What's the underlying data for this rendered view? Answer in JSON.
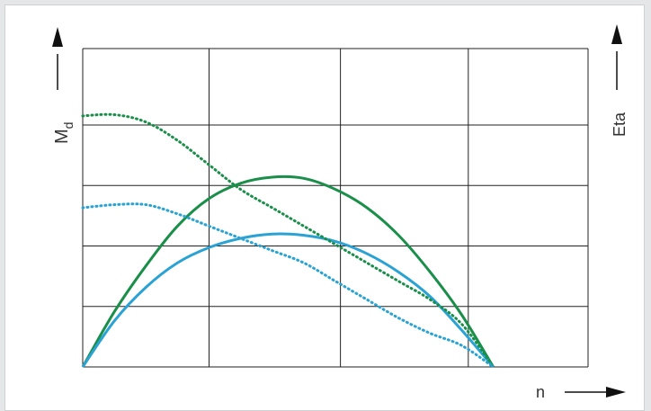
{
  "chart_data": {
    "type": "line",
    "ylabel_left": "M",
    "ylabel_left_subscript": "d",
    "ylabel_right": "Eta",
    "xlabel": "n",
    "xlim": [
      0,
      4
    ],
    "ylim": [
      0,
      5.2
    ],
    "grid": true,
    "series": [
      {
        "color": "#1a8f4a",
        "style": "solid",
        "x": [
          0,
          0.25,
          0.5,
          0.75,
          1.0,
          1.25,
          1.5,
          1.75,
          2.0,
          2.25,
          2.5,
          2.75,
          3.0,
          3.25
        ],
        "y": [
          0,
          0.9,
          1.65,
          2.3,
          2.75,
          3.0,
          3.1,
          3.08,
          2.9,
          2.6,
          2.15,
          1.55,
          0.85,
          0.0
        ]
      },
      {
        "color": "#2aa3d4",
        "style": "solid",
        "x": [
          0,
          0.25,
          0.5,
          0.75,
          1.0,
          1.25,
          1.5,
          1.75,
          2.0,
          2.25,
          2.5,
          2.75,
          3.0,
          3.25
        ],
        "y": [
          0,
          0.75,
          1.3,
          1.7,
          1.95,
          2.1,
          2.17,
          2.15,
          2.05,
          1.85,
          1.55,
          1.15,
          0.6,
          0.0
        ]
      },
      {
        "color": "#1a8f4a",
        "style": "dotted",
        "x": [
          0,
          0.25,
          0.5,
          0.75,
          1.0,
          1.25,
          1.5,
          1.75,
          2.0,
          2.25,
          2.5,
          2.75,
          3.0,
          3.25
        ],
        "y": [
          4.1,
          4.12,
          4.0,
          3.7,
          3.3,
          2.9,
          2.6,
          2.3,
          2.0,
          1.7,
          1.4,
          1.1,
          0.7,
          0.0
        ]
      },
      {
        "color": "#2aa3d4",
        "style": "dotted",
        "x": [
          0,
          0.25,
          0.5,
          0.75,
          1.0,
          1.25,
          1.5,
          1.75,
          2.0,
          2.25,
          2.5,
          2.75,
          3.0,
          3.25
        ],
        "y": [
          2.6,
          2.65,
          2.65,
          2.5,
          2.3,
          2.1,
          1.9,
          1.7,
          1.4,
          1.1,
          0.8,
          0.55,
          0.35,
          0.0
        ]
      }
    ]
  }
}
